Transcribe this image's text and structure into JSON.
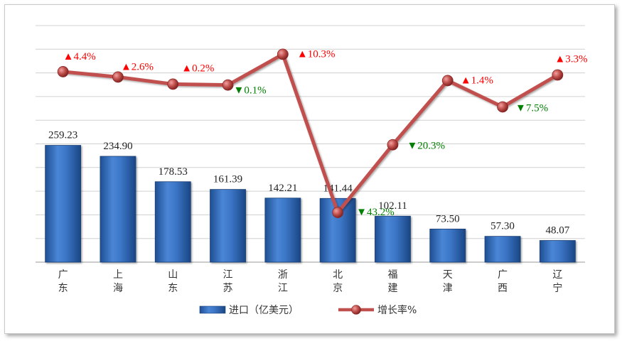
{
  "chart_data": {
    "type": "bar+line",
    "categories": [
      [
        "广",
        "东"
      ],
      [
        "上",
        "海"
      ],
      [
        "山",
        "东"
      ],
      [
        "江",
        "苏"
      ],
      [
        "浙",
        "江"
      ],
      [
        "北",
        "京"
      ],
      [
        "福",
        "建"
      ],
      [
        "天",
        "津"
      ],
      [
        "广",
        "西"
      ],
      [
        "辽",
        "宁"
      ]
    ],
    "series": [
      {
        "name": "进口（亿美元）",
        "type": "bar",
        "values": [
          259.23,
          234.9,
          178.53,
          161.39,
          142.21,
          141.44,
          102.11,
          73.5,
          57.3,
          48.07
        ],
        "labels": [
          "259.23",
          "234.90",
          "178.53",
          "161.39",
          "142.21",
          "141.44",
          "102.11",
          "73.50",
          "57.30",
          "48.07"
        ],
        "color": "#3c72c2"
      },
      {
        "name": "增长率%",
        "type": "line",
        "values": [
          4.4,
          2.6,
          0.2,
          -0.1,
          10.3,
          -43.2,
          -20.3,
          1.4,
          -7.5,
          3.3
        ],
        "labels": [
          "▲4.4%",
          "▲2.6%",
          "▲0.2%",
          "▼0.1%",
          "▲10.3%",
          "▼43.2%",
          "▼20.3%",
          "▲1.4%",
          "▼7.5%",
          "▲3.3%"
        ],
        "color": "#c0504d"
      }
    ],
    "up_color": "#ff0000",
    "down_color": "#008000",
    "bar_ylim": [
      0,
      525
    ],
    "line_ylim": [
      -60,
      20
    ],
    "grid": true,
    "legend_position": "bottom"
  }
}
